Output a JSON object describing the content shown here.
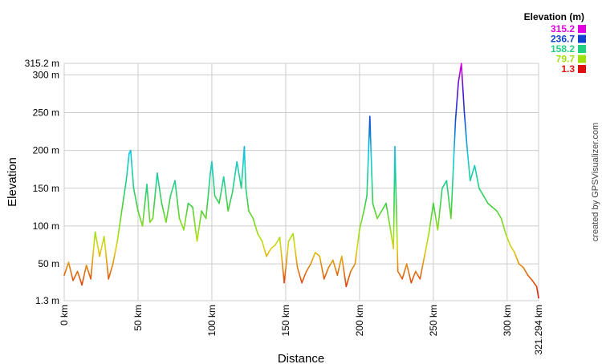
{
  "chart_data": {
    "type": "line",
    "xlabel": "Distance",
    "ylabel": "Elevation",
    "credit": "created by GPSVisualizer.com",
    "xlim": [
      0,
      321.294
    ],
    "ylim": [
      1.3,
      315.2
    ],
    "grid": true,
    "x_ticks": [
      {
        "value": 0,
        "label": "0 km"
      },
      {
        "value": 50,
        "label": "50 km"
      },
      {
        "value": 100,
        "label": "100 km"
      },
      {
        "value": 150,
        "label": "150 km"
      },
      {
        "value": 200,
        "label": "200 km"
      },
      {
        "value": 250,
        "label": "250 km"
      },
      {
        "value": 300,
        "label": "300 km"
      },
      {
        "value": 321.294,
        "label": "321.294 km"
      }
    ],
    "y_ticks": [
      {
        "value": 1.3,
        "label": "1.3 m"
      },
      {
        "value": 50,
        "label": "50 m"
      },
      {
        "value": 100,
        "label": "100 m"
      },
      {
        "value": 150,
        "label": "150 m"
      },
      {
        "value": 200,
        "label": "200 m"
      },
      {
        "value": 250,
        "label": "250 m"
      },
      {
        "value": 300,
        "label": "300 m"
      },
      {
        "value": 315.2,
        "label": "315.2 m"
      }
    ],
    "legend": {
      "title": "Elevation (m)",
      "placement": "top-right",
      "entries": [
        {
          "label": "315.2",
          "value": 315.2,
          "color": "#e000e0"
        },
        {
          "label": "236.7",
          "value": 236.7,
          "color": "#1040d0"
        },
        {
          "label": "158.2",
          "value": 158.2,
          "color": "#20d080"
        },
        {
          "label": "79.7",
          "value": 79.7,
          "color": "#a0e010"
        },
        {
          "label": "1.3",
          "value": 1.3,
          "color": "#e01010"
        }
      ]
    },
    "series": [
      {
        "x": [
          0,
          3,
          6,
          9,
          12,
          15,
          18,
          21,
          24,
          27,
          30,
          33,
          36,
          39,
          42,
          44,
          45,
          47,
          50,
          53,
          56,
          58,
          60,
          63,
          66,
          69,
          72,
          75,
          78,
          81,
          84,
          87,
          90,
          93,
          96,
          99,
          100,
          102,
          105,
          108,
          111,
          114,
          117,
          120,
          122,
          123,
          125,
          128,
          131,
          134,
          137,
          140,
          143,
          146,
          149,
          152,
          155,
          158,
          161,
          164,
          167,
          170,
          173,
          176,
          179,
          182,
          185,
          188,
          191,
          194,
          197,
          200,
          203,
          205,
          207,
          209,
          212,
          215,
          218,
          221,
          223,
          224,
          226,
          229,
          232,
          235,
          238,
          241,
          244,
          247,
          250,
          253,
          256,
          259,
          262,
          265,
          267,
          269,
          271,
          273,
          275,
          278,
          281,
          284,
          287,
          290,
          293,
          296,
          299,
          302,
          305,
          308,
          311,
          314,
          317,
          320,
          321.294
        ],
        "y": [
          35,
          52,
          28,
          40,
          22,
          48,
          30,
          92,
          60,
          86,
          30,
          50,
          80,
          120,
          160,
          196,
          200,
          150,
          120,
          100,
          155,
          105,
          110,
          170,
          130,
          105,
          140,
          160,
          110,
          95,
          130,
          125,
          80,
          120,
          110,
          170,
          185,
          140,
          130,
          165,
          120,
          145,
          185,
          150,
          205,
          150,
          120,
          110,
          90,
          80,
          60,
          70,
          75,
          85,
          25,
          80,
          90,
          45,
          25,
          40,
          50,
          65,
          60,
          30,
          45,
          55,
          35,
          60,
          20,
          40,
          50,
          95,
          120,
          140,
          245,
          130,
          110,
          120,
          130,
          95,
          70,
          205,
          40,
          30,
          50,
          25,
          40,
          30,
          60,
          90,
          130,
          95,
          150,
          160,
          110,
          240,
          290,
          315,
          250,
          200,
          160,
          180,
          150,
          140,
          130,
          125,
          120,
          110,
          90,
          75,
          65,
          50,
          45,
          35,
          28,
          20,
          5
        ]
      }
    ]
  }
}
